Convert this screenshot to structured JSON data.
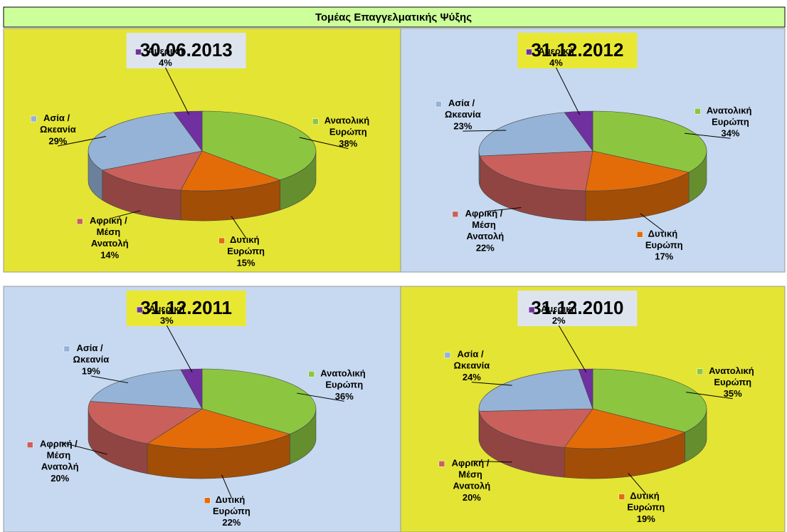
{
  "title": "Τομέας Επαγγελματικής Ψύξης",
  "chart_data": [
    {
      "type": "pie",
      "title": "30.06.2013",
      "background": "#e4e434",
      "title_background": "#dde4ee",
      "categories": [
        "Ανατολική Ευρώπη",
        "Δυτική Ευρώπη",
        "Αφρική / Μέση Ανατολή",
        "Ασία / Ωκεανία",
        "Αμερική"
      ],
      "values": [
        38,
        15,
        14,
        29,
        4
      ],
      "value_labels": [
        "38%",
        "15%",
        "14%",
        "29%",
        "4%"
      ],
      "colors": [
        "#8cc641",
        "#e36c09",
        "#c9605c",
        "#95b3d7",
        "#7030a0"
      ]
    },
    {
      "type": "pie",
      "title": "31.12.2012",
      "background": "#c6d9f0",
      "title_background": "#e8e832",
      "categories": [
        "Ανατολική Ευρώπη",
        "Δυτική Ευρώπη",
        "Αφρική / Μέση Ανατολή",
        "Ασία / Ωκεανία",
        "Αμερική"
      ],
      "values": [
        34,
        17,
        22,
        23,
        4
      ],
      "value_labels": [
        "34%",
        "17%",
        "22%",
        "23%",
        "4%"
      ],
      "colors": [
        "#8cc641",
        "#e36c09",
        "#c9605c",
        "#95b3d7",
        "#7030a0"
      ]
    },
    {
      "type": "pie",
      "title": "31.12.2011",
      "background": "#c6d9f0",
      "title_background": "#e8e832",
      "categories": [
        "Ανατολική Ευρώπη",
        "Δυτική Ευρώπη",
        "Αφρική / Μέση Ανατολή",
        "Ασία / Ωκεανία",
        "Αμερική"
      ],
      "values": [
        36,
        22,
        20,
        19,
        3
      ],
      "value_labels": [
        "36%",
        "22%",
        "20%",
        "19%",
        "3%"
      ],
      "colors": [
        "#8cc641",
        "#e36c09",
        "#c9605c",
        "#95b3d7",
        "#7030a0"
      ]
    },
    {
      "type": "pie",
      "title": "31.12.2010",
      "background": "#e4e434",
      "title_background": "#dde4ee",
      "categories": [
        "Ανατολική Ευρώπη",
        "Δυτική Ευρώπη",
        "Αφρική / Μέση Ανατολή",
        "Ασία / Ωκεανία",
        "Αμερική"
      ],
      "values": [
        35,
        19,
        20,
        24,
        2
      ],
      "value_labels": [
        "35%",
        "19%",
        "20%",
        "24%",
        "2%"
      ],
      "colors": [
        "#8cc641",
        "#e36c09",
        "#c9605c",
        "#95b3d7",
        "#7030a0"
      ]
    }
  ]
}
